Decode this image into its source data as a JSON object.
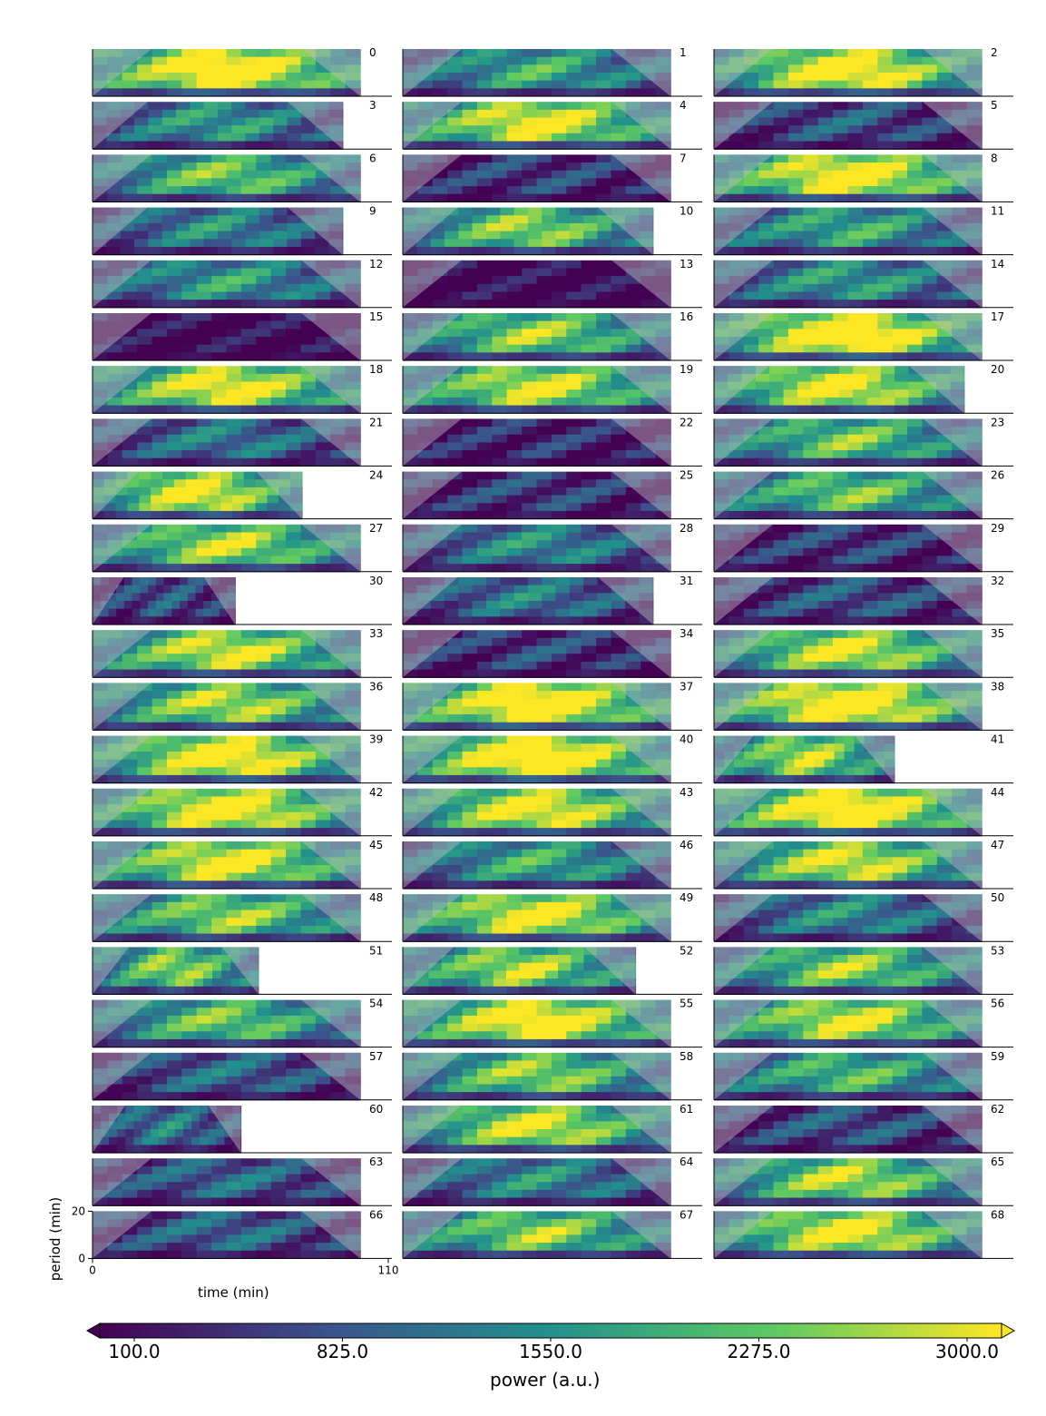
{
  "chart_data": {
    "type": "heatmap",
    "description_units": "wavelet power spectra per cell, time vs period",
    "xlabel": "time (min)",
    "ylabel": "period (min)",
    "xlim": [
      0,
      110
    ],
    "ylim": [
      0,
      20
    ],
    "x_ticks": [
      "0",
      "110"
    ],
    "y_ticks": [
      "0",
      "20"
    ],
    "colorbar": {
      "label": "power (a.u.)",
      "min": 100.0,
      "max": 3000.0,
      "ticks": [
        "100.0",
        "825.0",
        "1550.0",
        "2275.0",
        "3000.0"
      ],
      "colormap": [
        "#440154",
        "#3b528b",
        "#21918c",
        "#5ec962",
        "#fde725"
      ],
      "extend": "both"
    },
    "panel_count": 69,
    "panel_labels": [
      "0",
      "1",
      "2",
      "3",
      "4",
      "5",
      "6",
      "7",
      "8",
      "9",
      "10",
      "11",
      "12",
      "13",
      "14",
      "15",
      "16",
      "17",
      "18",
      "19",
      "20",
      "21",
      "22",
      "23",
      "24",
      "25",
      "26",
      "27",
      "28",
      "29",
      "30",
      "31",
      "32",
      "33",
      "34",
      "35",
      "36",
      "37",
      "38",
      "39",
      "40",
      "41",
      "42",
      "43",
      "44",
      "45",
      "46",
      "47",
      "48",
      "49",
      "50",
      "51",
      "52",
      "53",
      "54",
      "55",
      "56",
      "57",
      "58",
      "59",
      "60",
      "61",
      "62",
      "63",
      "64",
      "65",
      "66",
      "67",
      "68"
    ],
    "panel_duration_fraction": [
      0.92,
      0.92,
      0.92,
      0.86,
      0.92,
      0.92,
      0.92,
      0.92,
      0.92,
      0.86,
      0.86,
      0.92,
      0.92,
      0.92,
      0.92,
      0.92,
      0.92,
      0.92,
      0.92,
      0.92,
      0.86,
      0.92,
      0.92,
      0.92,
      0.72,
      0.92,
      0.92,
      0.92,
      0.92,
      0.92,
      0.49,
      0.86,
      0.92,
      0.92,
      0.92,
      0.92,
      0.92,
      0.92,
      0.92,
      0.92,
      0.92,
      0.62,
      0.92,
      0.92,
      0.92,
      0.92,
      0.92,
      0.92,
      0.92,
      0.92,
      0.92,
      0.57,
      0.8,
      0.92,
      0.92,
      0.92,
      0.92,
      0.92,
      0.92,
      0.92,
      0.51,
      0.92,
      0.92,
      0.92,
      0.92,
      0.92,
      0.92,
      0.92,
      0.92
    ],
    "panel_mean_power_level": [
      0.85,
      0.45,
      0.8,
      0.4,
      0.75,
      0.2,
      0.55,
      0.15,
      0.8,
      0.35,
      0.6,
      0.45,
      0.4,
      0.0,
      0.4,
      0.0,
      0.6,
      0.85,
      0.75,
      0.7,
      0.75,
      0.3,
      0.1,
      0.55,
      0.75,
      0.15,
      0.55,
      0.65,
      0.35,
      0.15,
      0.2,
      0.3,
      0.2,
      0.7,
      0.15,
      0.7,
      0.65,
      0.85,
      0.85,
      0.8,
      0.85,
      0.65,
      0.8,
      0.75,
      0.85,
      0.75,
      0.45,
      0.7,
      0.6,
      0.75,
      0.35,
      0.6,
      0.65,
      0.6,
      0.55,
      0.8,
      0.7,
      0.25,
      0.6,
      0.5,
      0.3,
      0.7,
      0.2,
      0.25,
      0.35,
      0.65,
      0.25,
      0.6,
      0.75
    ]
  }
}
